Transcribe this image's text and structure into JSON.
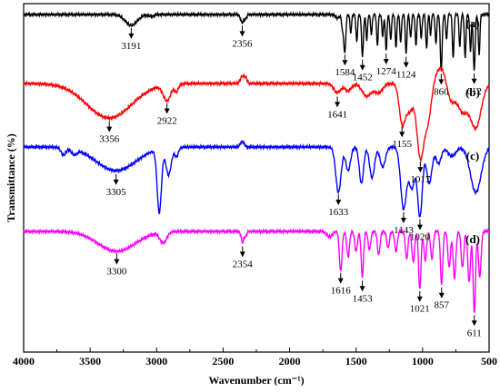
{
  "chart_data": {
    "type": "line",
    "xlabel": "Wavenumber (cm⁻¹)",
    "ylabel": "Transmittance (%)",
    "xlim": [
      4000,
      500
    ],
    "x_reversed": true,
    "x_ticks": [
      "4000",
      "3500",
      "3000",
      "2500",
      "2000",
      "1500",
      "1000",
      "500"
    ],
    "y_ticks_shown": false,
    "series": [
      {
        "name": "(a)",
        "color": "#000000",
        "peaks": [
          {
            "x": 3191,
            "label": "3191"
          },
          {
            "x": 2356,
            "label": "2356"
          },
          {
            "x": 1584,
            "label": "1584"
          },
          {
            "x": 1452,
            "label": "1452"
          },
          {
            "x": 1274,
            "label": "1274"
          },
          {
            "x": 1124,
            "label": "1124"
          },
          {
            "x": 860,
            "label": "860"
          },
          {
            "x": 612,
            "label": "612"
          }
        ]
      },
      {
        "name": "(b)",
        "color": "#ff0000",
        "peaks": [
          {
            "x": 3356,
            "label": "3356"
          },
          {
            "x": 2922,
            "label": "2922"
          },
          {
            "x": 1641,
            "label": "1641"
          },
          {
            "x": 1155,
            "label": "1155"
          },
          {
            "x": 1017,
            "label": "1017"
          }
        ]
      },
      {
        "name": "(c)",
        "color": "#0000ff",
        "peaks": [
          {
            "x": 3305,
            "label": "3305"
          },
          {
            "x": 1633,
            "label": "1633"
          },
          {
            "x": 1143,
            "label": "1143"
          },
          {
            "x": 1020,
            "label": "1020"
          }
        ]
      },
      {
        "name": "(d)",
        "color": "#ff00ff",
        "peaks": [
          {
            "x": 3300,
            "label": "3300"
          },
          {
            "x": 2354,
            "label": "2354"
          },
          {
            "x": 1616,
            "label": "1616"
          },
          {
            "x": 1453,
            "label": "1453"
          },
          {
            "x": 1021,
            "label": "1021"
          },
          {
            "x": 857,
            "label": "857"
          },
          {
            "x": 611,
            "label": "611"
          }
        ]
      }
    ]
  }
}
